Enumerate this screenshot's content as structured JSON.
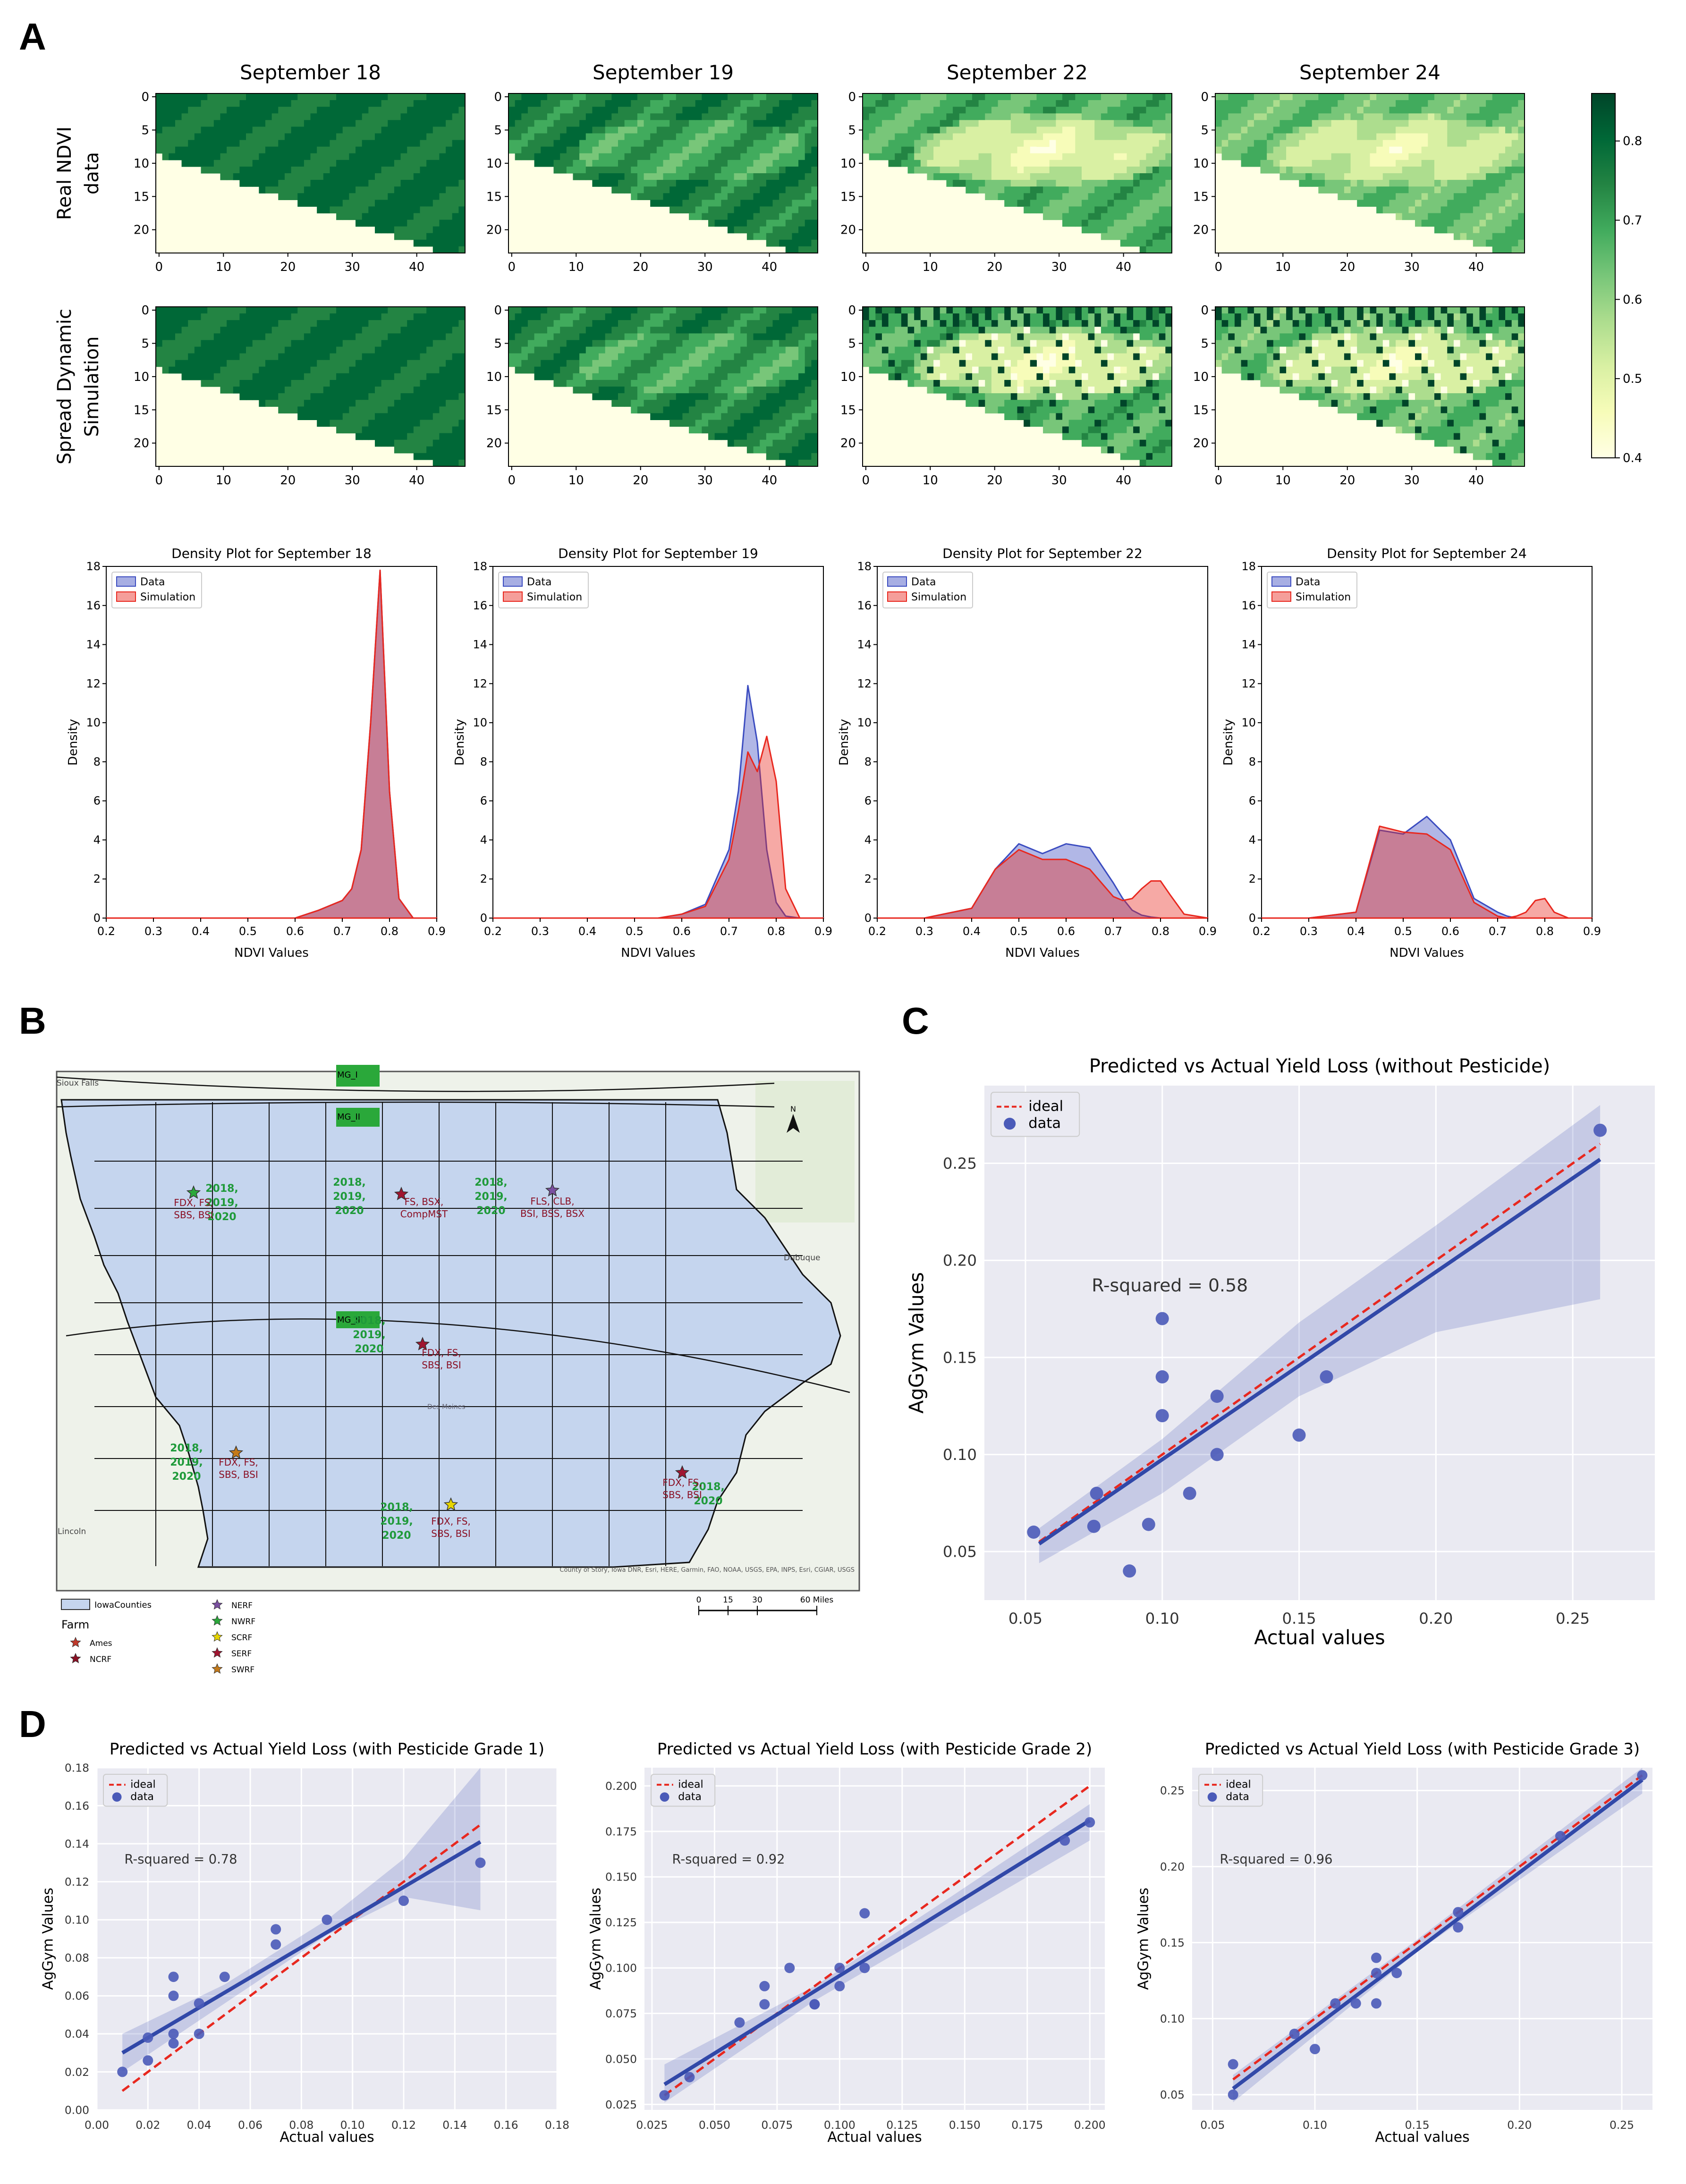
{
  "panel_labels": [
    "A",
    "B",
    "C",
    "D"
  ],
  "heatmaps": {
    "column_titles": [
      "September 18",
      "September 19",
      "September 22",
      "September 24"
    ],
    "row_labels": [
      [
        "Real NDVI",
        "data"
      ],
      [
        "Spread Dynamic",
        "Simulation"
      ]
    ],
    "x_ticks": [
      "0",
      "10",
      "20",
      "30",
      "40"
    ],
    "y_ticks": [
      "0",
      "5",
      "10",
      "15",
      "20"
    ],
    "colorbar": {
      "ticks": [
        "0.4",
        "0.5",
        "0.6",
        "0.7",
        "0.8"
      ],
      "min": 0.4,
      "max": 0.86,
      "colors": [
        "#ffffe5",
        "#f7fcb9",
        "#d9f0a3",
        "#addd8e",
        "#78c679",
        "#41ab5d",
        "#238443",
        "#006837",
        "#004529"
      ]
    }
  },
  "density": {
    "titles": [
      "Density Plot for September 18",
      "Density Plot for September 19",
      "Density Plot for September 22",
      "Density Plot for September 24"
    ],
    "xlabel": "NDVI Values",
    "ylabel": "Density",
    "x_ticks": [
      "0.2",
      "0.3",
      "0.4",
      "0.5",
      "0.6",
      "0.7",
      "0.8",
      "0.9"
    ],
    "y_ticks": [
      "0",
      "2",
      "4",
      "6",
      "8",
      "10",
      "12",
      "14",
      "16",
      "18"
    ],
    "legend": [
      "Data",
      "Simulation"
    ],
    "colors": {
      "data": "#3b4cc0",
      "simulation": "#e8281f"
    }
  },
  "map": {
    "zones": [
      "MG_I",
      "MG_II",
      "MG_III"
    ],
    "cities": [
      "Sioux Falls",
      "Dubuque",
      "Lincoln",
      "Des Moines"
    ],
    "sites": [
      {
        "years": [
          "2018,",
          "2019,",
          "2020"
        ],
        "diseases": [
          "FDX, FS,",
          "SBS, BSI"
        ]
      },
      {
        "years": [
          "2018,",
          "2019,",
          "2020"
        ],
        "diseases": [
          "FS, BSX,",
          "CompMST"
        ]
      },
      {
        "years": [
          "2018,",
          "2019,",
          "2020"
        ],
        "diseases": [
          "FLS, CLB,",
          "BSI, BSS, BSX"
        ]
      },
      {
        "years": [
          "2018,",
          "2019,",
          "2020"
        ],
        "diseases": [
          "FDX, FS,",
          "SBS, BSI"
        ]
      },
      {
        "years": [
          "2018,",
          "2019,",
          "2020"
        ],
        "diseases": [
          "FDX, FS,",
          "SBS, BSI"
        ]
      },
      {
        "years": [
          "2018,",
          "2020"
        ],
        "diseases": [
          "FDX, FS,",
          "SBS, BSI"
        ]
      },
      {
        "years": [
          "2018,",
          "2019,",
          "2020"
        ],
        "diseases": [
          "FDX, FS,",
          "SBS, BSI"
        ]
      }
    ],
    "legend_title": "Farm",
    "legend_layer": "IowaCounties",
    "legend_farms": [
      "Ames",
      "NCRF",
      "NERF",
      "NWRF",
      "SCRF",
      "SERF",
      "SWRF"
    ],
    "scale_ticks": [
      "0",
      "15",
      "30",
      "60 Miles"
    ],
    "north": "N",
    "attribution": "County of Story, Iowa DNR, Esri, HERE, Garmin, FAO, NOAA, USGS, EPA, INPS, Esri, CGIAR, USGS"
  },
  "chart_data": [
    {
      "panel": "C",
      "type": "scatter",
      "title": "Predicted vs Actual Yield Loss (without Pesticide)",
      "xlabel": "Actual values",
      "ylabel": "AgGym Values",
      "xlim": [
        0.035,
        0.28
      ],
      "ylim": [
        0.025,
        0.29
      ],
      "xticks": [
        "0.05",
        "0.10",
        "0.15",
        "0.20",
        "0.25"
      ],
      "yticks": [
        "0.05",
        "0.10",
        "0.15",
        "0.20",
        "0.25"
      ],
      "annotation": "R-squared = 0.58",
      "legend": [
        "ideal",
        "data"
      ],
      "x": [
        0.053,
        0.075,
        0.076,
        0.088,
        0.095,
        0.1,
        0.1,
        0.1,
        0.11,
        0.12,
        0.12,
        0.15,
        0.16,
        0.26
      ],
      "y": [
        0.06,
        0.063,
        0.08,
        0.04,
        0.064,
        0.17,
        0.14,
        0.12,
        0.08,
        0.13,
        0.1,
        0.11,
        0.14,
        0.267
      ],
      "fit_line": [
        [
          0.055,
          0.054
        ],
        [
          0.26,
          0.252
        ]
      ],
      "ideal_line": [
        [
          0.055,
          0.055
        ],
        [
          0.26,
          0.26
        ]
      ],
      "ci_upper": [
        [
          0.055,
          0.062
        ],
        [
          0.1,
          0.108
        ],
        [
          0.15,
          0.168
        ],
        [
          0.2,
          0.218
        ],
        [
          0.26,
          0.28
        ]
      ],
      "ci_lower": [
        [
          0.055,
          0.044
        ],
        [
          0.1,
          0.08
        ],
        [
          0.15,
          0.13
        ],
        [
          0.2,
          0.163
        ],
        [
          0.26,
          0.18
        ]
      ]
    },
    {
      "panel": "D1",
      "type": "scatter",
      "title": "Predicted vs Actual Yield Loss (with Pesticide Grade 1)",
      "xlabel": "Actual values",
      "ylabel": "AgGym Values",
      "xlim": [
        0.0,
        0.18
      ],
      "ylim": [
        0.0,
        0.18
      ],
      "xticks": [
        "0.00",
        "0.02",
        "0.04",
        "0.06",
        "0.08",
        "0.10",
        "0.12",
        "0.14",
        "0.16",
        "0.18"
      ],
      "yticks": [
        "0.00",
        "0.02",
        "0.04",
        "0.06",
        "0.08",
        "0.10",
        "0.12",
        "0.14",
        "0.16",
        "0.18"
      ],
      "annotation": "R-squared = 0.78",
      "legend": [
        "ideal",
        "data"
      ],
      "x": [
        0.01,
        0.02,
        0.02,
        0.03,
        0.03,
        0.03,
        0.03,
        0.04,
        0.04,
        0.05,
        0.07,
        0.07,
        0.09,
        0.12,
        0.15
      ],
      "y": [
        0.02,
        0.026,
        0.038,
        0.035,
        0.04,
        0.06,
        0.07,
        0.04,
        0.056,
        0.07,
        0.087,
        0.095,
        0.1,
        0.11,
        0.13
      ],
      "fit_line": [
        [
          0.01,
          0.03
        ],
        [
          0.15,
          0.141
        ]
      ],
      "ideal_line": [
        [
          0.01,
          0.01
        ],
        [
          0.15,
          0.15
        ]
      ],
      "ci_upper": [
        [
          0.01,
          0.04
        ],
        [
          0.05,
          0.066
        ],
        [
          0.09,
          0.1
        ],
        [
          0.12,
          0.132
        ],
        [
          0.15,
          0.18
        ]
      ],
      "ci_lower": [
        [
          0.01,
          0.02
        ],
        [
          0.05,
          0.056
        ],
        [
          0.09,
          0.092
        ],
        [
          0.12,
          0.112
        ],
        [
          0.15,
          0.105
        ]
      ]
    },
    {
      "panel": "D2",
      "type": "scatter",
      "title": "Predicted vs Actual Yield Loss (with Pesticide Grade 2)",
      "xlabel": "Actual values",
      "ylabel": "AgGym Values",
      "xlim": [
        0.022,
        0.206
      ],
      "ylim": [
        0.022,
        0.21
      ],
      "xticks": [
        "0.025",
        "0.050",
        "0.075",
        "0.100",
        "0.125",
        "0.150",
        "0.175",
        "0.200"
      ],
      "yticks": [
        "0.025",
        "0.050",
        "0.075",
        "0.100",
        "0.125",
        "0.150",
        "0.175",
        "0.200"
      ],
      "annotation": "R-squared = 0.92",
      "legend": [
        "ideal",
        "data"
      ],
      "x": [
        0.03,
        0.04,
        0.06,
        0.07,
        0.07,
        0.08,
        0.09,
        0.09,
        0.1,
        0.1,
        0.11,
        0.11,
        0.19,
        0.2
      ],
      "y": [
        0.03,
        0.04,
        0.07,
        0.08,
        0.09,
        0.1,
        0.08,
        0.08,
        0.09,
        0.1,
        0.13,
        0.1,
        0.17,
        0.18
      ],
      "fit_line": [
        [
          0.03,
          0.036
        ],
        [
          0.2,
          0.181
        ]
      ],
      "ideal_line": [
        [
          0.03,
          0.03
        ],
        [
          0.2,
          0.2
        ]
      ],
      "ci_upper": [
        [
          0.03,
          0.047
        ],
        [
          0.09,
          0.09
        ],
        [
          0.14,
          0.135
        ],
        [
          0.2,
          0.19
        ]
      ],
      "ci_lower": [
        [
          0.03,
          0.026
        ],
        [
          0.09,
          0.082
        ],
        [
          0.14,
          0.122
        ],
        [
          0.2,
          0.17
        ]
      ]
    },
    {
      "panel": "D3",
      "type": "scatter",
      "title": "Predicted vs Actual Yield Loss (with Pesticide Grade 3)",
      "xlabel": "Actual values",
      "ylabel": "AgGym Values",
      "xlim": [
        0.04,
        0.265
      ],
      "ylim": [
        0.04,
        0.265
      ],
      "xticks": [
        "0.05",
        "0.10",
        "0.15",
        "0.20",
        "0.25"
      ],
      "yticks": [
        "0.05",
        "0.10",
        "0.15",
        "0.20",
        "0.25"
      ],
      "annotation": "R-squared = 0.96",
      "legend": [
        "ideal",
        "data"
      ],
      "x": [
        0.06,
        0.06,
        0.09,
        0.1,
        0.11,
        0.12,
        0.13,
        0.13,
        0.13,
        0.14,
        0.17,
        0.17,
        0.22,
        0.26
      ],
      "y": [
        0.05,
        0.07,
        0.09,
        0.08,
        0.11,
        0.11,
        0.13,
        0.14,
        0.11,
        0.13,
        0.17,
        0.16,
        0.22,
        0.26
      ],
      "fit_line": [
        [
          0.06,
          0.054
        ],
        [
          0.26,
          0.257
        ]
      ],
      "ideal_line": [
        [
          0.06,
          0.06
        ],
        [
          0.26,
          0.26
        ]
      ],
      "ci_upper": [
        [
          0.06,
          0.063
        ],
        [
          0.15,
          0.152
        ],
        [
          0.26,
          0.265
        ]
      ],
      "ci_lower": [
        [
          0.06,
          0.045
        ],
        [
          0.15,
          0.144
        ],
        [
          0.26,
          0.248
        ]
      ]
    },
    {
      "panel": "A-density",
      "type": "area",
      "x": [
        0.2,
        0.3,
        0.4,
        0.45,
        0.5,
        0.55,
        0.6,
        0.65,
        0.7,
        0.72,
        0.74,
        0.76,
        0.78,
        0.8,
        0.82,
        0.85,
        0.9
      ],
      "series": [
        {
          "name": "Data",
          "plot": "Density Plot for September 18",
          "values": [
            0,
            0,
            0,
            0,
            0,
            0,
            0,
            0.4,
            0.9,
            1.5,
            3.5,
            10.0,
            17.8,
            6.5,
            1.0,
            0,
            0
          ]
        },
        {
          "name": "Simulation",
          "plot": "Density Plot for September 18",
          "values": [
            0,
            0,
            0,
            0,
            0,
            0,
            0,
            0.4,
            0.9,
            1.5,
            3.5,
            10.0,
            17.8,
            6.5,
            1.0,
            0,
            0
          ]
        },
        {
          "name": "Data",
          "plot": "Density Plot for September 19",
          "values": [
            0,
            0,
            0,
            0,
            0,
            0,
            0.2,
            0.7,
            3.5,
            6.5,
            11.9,
            9.0,
            3.5,
            0.8,
            0.1,
            0,
            0
          ]
        },
        {
          "name": "Simulation",
          "plot": "Density Plot for September 19",
          "values": [
            0,
            0,
            0,
            0,
            0,
            0,
            0.2,
            0.6,
            3.0,
            5.5,
            8.5,
            7.5,
            9.3,
            7.0,
            1.5,
            0,
            0
          ]
        },
        {
          "name": "Data",
          "plot": "Density Plot for September 22",
          "values": [
            0,
            0,
            0.5,
            2.5,
            3.8,
            3.3,
            3.8,
            3.6,
            1.8,
            1.0,
            0.4,
            0.15,
            0.05,
            0,
            0,
            0,
            0
          ]
        },
        {
          "name": "Simulation",
          "plot": "Density Plot for September 22",
          "values": [
            0,
            0,
            0.5,
            2.5,
            3.5,
            3.0,
            3.0,
            2.5,
            1.1,
            0.9,
            1.0,
            1.5,
            1.9,
            1.9,
            1.2,
            0.2,
            0
          ]
        },
        {
          "name": "Data",
          "plot": "Density Plot for September 24",
          "values": [
            0,
            0,
            0.3,
            4.5,
            4.3,
            5.2,
            4.0,
            1.0,
            0.3,
            0.1,
            0,
            0,
            0,
            0,
            0,
            0,
            0
          ]
        },
        {
          "name": "Simulation",
          "plot": "Density Plot for September 24",
          "values": [
            0,
            0,
            0.3,
            4.7,
            4.4,
            4.3,
            3.5,
            0.8,
            0.1,
            0,
            0.1,
            0.3,
            0.9,
            1.0,
            0.3,
            0,
            0
          ]
        }
      ]
    }
  ]
}
